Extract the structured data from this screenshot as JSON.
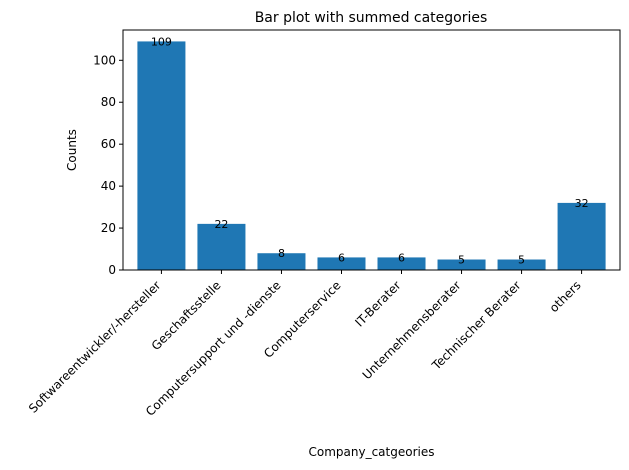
{
  "chart_data": {
    "type": "bar",
    "title": "Bar plot with summed categories",
    "xlabel": "Company_catgeories",
    "ylabel": "Counts",
    "categories": [
      "Softwareentwickler/-hersteller",
      "Geschaftsstelle",
      "Computersupport und -dienste",
      "Computerservice",
      "IT-Berater",
      "Unternehmensberater",
      "Technischer Berater",
      "others"
    ],
    "values": [
      109,
      22,
      8,
      6,
      6,
      5,
      5,
      32
    ],
    "ylim": [
      0,
      114.45
    ],
    "yticks": [
      0,
      20,
      40,
      60,
      80,
      100
    ],
    "bar_color": "#1f77b4",
    "grid": false,
    "legend": false
  }
}
